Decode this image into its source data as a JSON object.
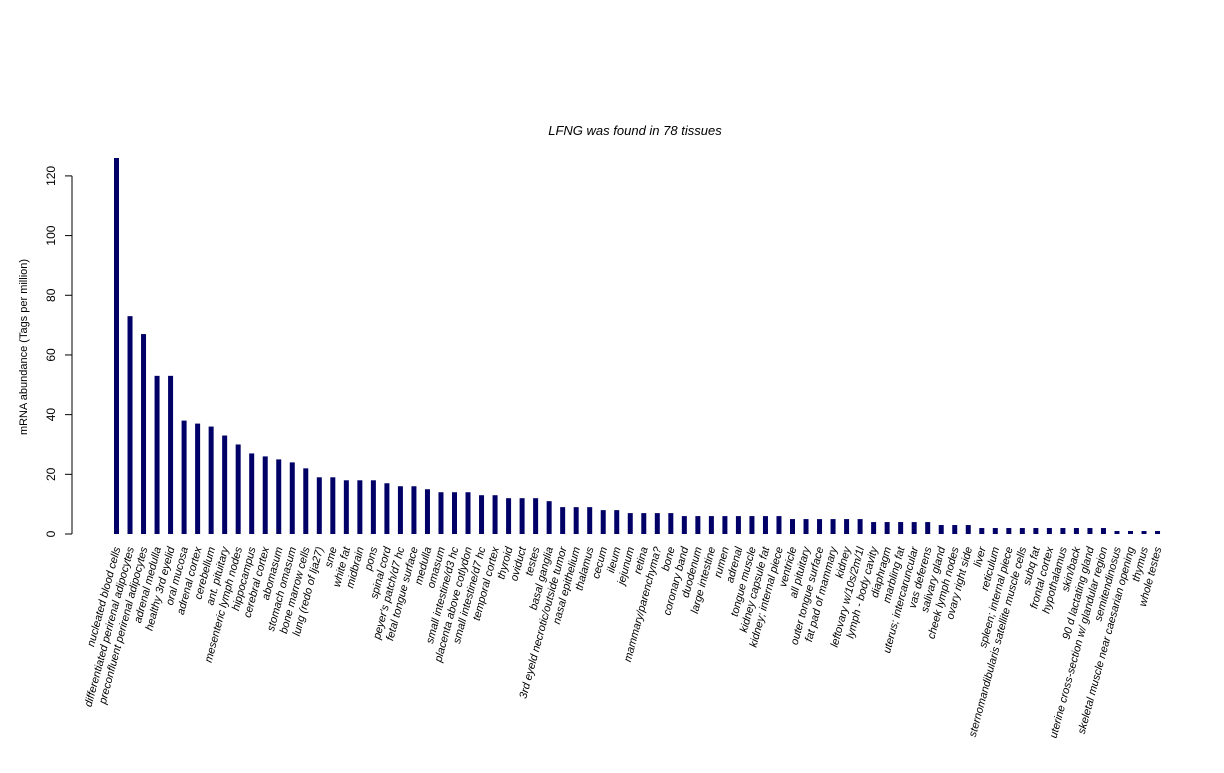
{
  "chart_data": {
    "type": "bar",
    "title_parts": {
      "gene": "LFNG",
      "middle": "was found in",
      "count": "78",
      "suffix": "tissues"
    },
    "ylabel": "mRNA abundance (Tags per million)",
    "ylim": [
      0,
      126
    ],
    "yticks": [
      0,
      20,
      40,
      60,
      80,
      100,
      120
    ],
    "colors": {
      "bar": "#000066"
    },
    "categories": [
      "nucleated blood cells",
      "differentiated perirenal adipocytes",
      "preconfluent perirenal adipocytes",
      "adrenal medulla",
      "healthy 3rd eyelid",
      "oral mucosa",
      "adrenal cortex",
      "cerebellum",
      "ant. pituitary",
      "mesenteric lymph nodes",
      "hippocampus",
      "cerebral cortex",
      "abomasum",
      "stomach omasum",
      "bone marrow cells",
      "lung (redo of lja27)",
      "sme",
      "white fat",
      "midbrain",
      "pons",
      "spinal cord",
      "peyer's patch/d7 hc",
      "fetal tongue surface",
      "medulla",
      "omasum",
      "small intestine/d3 hc",
      "placenta above cotlydon",
      "small intestine/d7 hc",
      "temporal cortex",
      "thyroid",
      "oviduct",
      "testes",
      "basal ganglia",
      "3rd eyeld necrotic/outside tumor",
      "nasal epithelium",
      "thalamus",
      "cecum",
      "ileum",
      "jejunum",
      "retina",
      "mammary/parenchyma?",
      "bone",
      "coronary band",
      "duodenum",
      "large intestine",
      "rumen",
      "adrenal",
      "tongue muscle",
      "kidney capsule fat",
      "kidney; internal piece",
      "ventricle",
      "all pituitary",
      "outer tongue surface",
      "fat pad of mammary",
      "kidney",
      "leftovary w/10s/2m/1l",
      "lymph - body cavity",
      "diaphragm",
      "marbling fat",
      "uterus; intercaruncular",
      "vas deferens",
      "salivary gland",
      "cheek lymph nodes",
      "ovary right side",
      "liver",
      "reticulum",
      "spleen; internal piece",
      "sternomandibularis satellite muscle cells",
      "subq fat",
      "frontal cortex",
      "hypothalamus",
      "skin/back",
      "90 d lactating gland",
      "uterine cross-section w/ glandular region",
      "semitendinosus",
      "skeletal muscle near caesarian opening",
      "thymus",
      "whole testes"
    ],
    "values": [
      126,
      73,
      67,
      53,
      53,
      38,
      37,
      36,
      33,
      30,
      27,
      26,
      25,
      24,
      22,
      19,
      19,
      18,
      18,
      18,
      17,
      16,
      16,
      15,
      14,
      14,
      14,
      13,
      13,
      12,
      12,
      12,
      11,
      9,
      9,
      9,
      8,
      8,
      7,
      7,
      7,
      7,
      6,
      6,
      6,
      6,
      6,
      6,
      6,
      6,
      5,
      5,
      5,
      5,
      5,
      5,
      4,
      4,
      4,
      4,
      4,
      3,
      3,
      3,
      2,
      2,
      2,
      2,
      2,
      2,
      2,
      2,
      2,
      2,
      1,
      1,
      1,
      1
    ]
  }
}
